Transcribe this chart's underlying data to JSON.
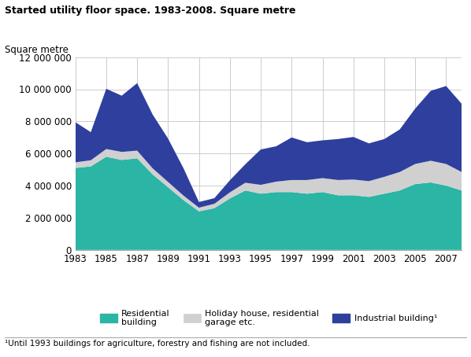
{
  "title": "Started utility floor space. 1983-2008. Square metre",
  "ylabel": "Square metre",
  "footnote": "¹Until 1993 buildings for agriculture, forestry and fishing are not included.",
  "years": [
    1983,
    1984,
    1985,
    1986,
    1987,
    1988,
    1989,
    1990,
    1991,
    1992,
    1993,
    1994,
    1995,
    1996,
    1997,
    1998,
    1999,
    2000,
    2001,
    2002,
    2003,
    2004,
    2005,
    2006,
    2007,
    2008
  ],
  "residential": [
    5100000,
    5200000,
    5800000,
    5600000,
    5700000,
    4700000,
    3900000,
    3100000,
    2400000,
    2600000,
    3200000,
    3700000,
    3500000,
    3600000,
    3600000,
    3500000,
    3600000,
    3400000,
    3400000,
    3300000,
    3500000,
    3700000,
    4100000,
    4200000,
    4000000,
    3700000
  ],
  "holiday": [
    350000,
    380000,
    480000,
    500000,
    480000,
    380000,
    330000,
    280000,
    230000,
    270000,
    380000,
    480000,
    550000,
    650000,
    750000,
    850000,
    870000,
    950000,
    980000,
    980000,
    1050000,
    1150000,
    1250000,
    1350000,
    1350000,
    1150000
  ],
  "industrial": [
    2500000,
    1750000,
    3750000,
    3500000,
    4200000,
    3350000,
    2700000,
    1700000,
    350000,
    350000,
    750000,
    1150000,
    2200000,
    2200000,
    2650000,
    2350000,
    2350000,
    2550000,
    2650000,
    2350000,
    2350000,
    2650000,
    3450000,
    4350000,
    4850000,
    4250000
  ],
  "color_residential": "#2ab5a5",
  "color_holiday": "#d0d0d0",
  "color_industrial": "#2e3f9e",
  "ylim": [
    0,
    12000000
  ],
  "yticks": [
    0,
    2000000,
    4000000,
    6000000,
    8000000,
    10000000,
    12000000
  ],
  "ytick_labels": [
    "0",
    "2 000 000",
    "4 000 000",
    "6 000 000",
    "8 000 000",
    "10 000 000",
    "12 000 000"
  ],
  "xtick_labels": [
    "1983",
    "1985",
    "1987",
    "1989",
    "1991",
    "1993",
    "1995",
    "1997",
    "1999",
    "2001",
    "2003",
    "2005",
    "2007"
  ],
  "legend_labels": [
    "Residential\nbuilding",
    "Holiday house, residential\ngarage etc.",
    "Industrial building¹"
  ]
}
